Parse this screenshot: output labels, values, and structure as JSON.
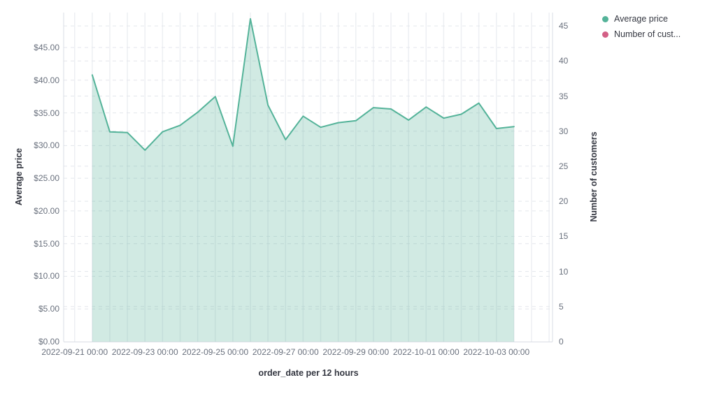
{
  "axes": {
    "x_title": "order_date per 12 hours",
    "y_left_title": "Average price",
    "y_right_title": "Number of customers"
  },
  "legend": {
    "position": "top-right",
    "items": [
      {
        "label": "Average price",
        "color": "#54b399"
      },
      {
        "label": "Number of cust...",
        "color": "#d36086"
      }
    ]
  },
  "chart_data": {
    "type": "area",
    "title": "",
    "xlabel": "order_date per 12 hours",
    "ylabel_left": "Average price",
    "ylabel_right": "Number of customers",
    "grid": true,
    "legend_position": "top-right",
    "x_tick_labels": [
      "2022-09-21 00:00",
      "2022-09-23 00:00",
      "2022-09-25 00:00",
      "2022-09-27 00:00",
      "2022-09-29 00:00",
      "2022-10-01 00:00",
      "2022-10-03 00:00"
    ],
    "y_left_ticks": {
      "values": [
        0,
        5,
        10,
        15,
        20,
        25,
        30,
        35,
        40,
        45
      ],
      "labels": [
        "$0.00",
        "$5.00",
        "$10.00",
        "$15.00",
        "$20.00",
        "$25.00",
        "$30.00",
        "$35.00",
        "$40.00",
        "$45.00"
      ]
    },
    "y_right_ticks": {
      "values": [
        0,
        5,
        10,
        15,
        20,
        25,
        30,
        35,
        40,
        45
      ],
      "labels": [
        "0",
        "5",
        "10",
        "15",
        "20",
        "25",
        "30",
        "35",
        "40",
        "45"
      ]
    },
    "ylim_left": [
      0,
      50.35
    ],
    "ylim_right": [
      0,
      46.9
    ],
    "series": [
      {
        "name": "Average price",
        "axis": "left",
        "type": "area",
        "color": "#54b399",
        "fill_color": "rgba(84,179,153,0.27)",
        "x_start": "2022-09-21 12:00",
        "x_step_hours": 12,
        "values": [
          40.8,
          32.1,
          32.0,
          29.3,
          32.1,
          33.1,
          35.1,
          37.5,
          29.9,
          49.4,
          36.2,
          30.9,
          34.5,
          32.8,
          33.5,
          33.8,
          35.8,
          35.6,
          33.9,
          35.9,
          34.2,
          34.8,
          36.5,
          32.6,
          32.9
        ]
      },
      {
        "name": "Number of customers",
        "axis": "right",
        "type": "line",
        "color": "#d36086",
        "values": []
      }
    ]
  }
}
